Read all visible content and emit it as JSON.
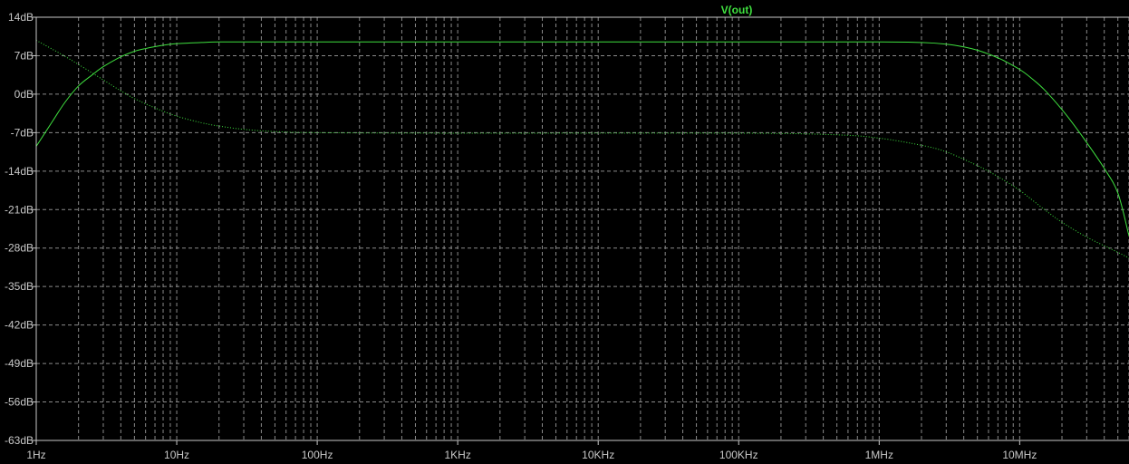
{
  "chart_data": {
    "type": "line",
    "title": "",
    "xlabel": "",
    "ylabel": "",
    "x_scale": "log",
    "xlim_hz": [
      1,
      60000000
    ],
    "ylim_db": [
      -63,
      14
    ],
    "grid": true,
    "legend_position": "top-center",
    "legend_label": "V(out)",
    "colors": {
      "background": "#000000",
      "trace": "#3fe03f",
      "grid": "#8a8a8a",
      "axis": "#c8c8c8"
    },
    "x_ticks": [
      {
        "value": 1,
        "label": "1Hz"
      },
      {
        "value": 10,
        "label": "10Hz"
      },
      {
        "value": 100,
        "label": "100Hz"
      },
      {
        "value": 1000,
        "label": "1KHz"
      },
      {
        "value": 10000,
        "label": "10KHz"
      },
      {
        "value": 100000,
        "label": "100KHz"
      },
      {
        "value": 1000000,
        "label": "1MHz"
      },
      {
        "value": 10000000,
        "label": "10MHz"
      }
    ],
    "y_ticks": [
      {
        "value": 14,
        "label": "14dB"
      },
      {
        "value": 7,
        "label": "7dB"
      },
      {
        "value": 0,
        "label": "0dB"
      },
      {
        "value": -7,
        "label": "-7dB"
      },
      {
        "value": -14,
        "label": "-14dB"
      },
      {
        "value": -21,
        "label": "-21dB"
      },
      {
        "value": -28,
        "label": "-28dB"
      },
      {
        "value": -35,
        "label": "-35dB"
      },
      {
        "value": -42,
        "label": "-42dB"
      },
      {
        "value": -49,
        "label": "-49dB"
      },
      {
        "value": -56,
        "label": "-56dB"
      },
      {
        "value": -63,
        "label": "-63dB"
      }
    ],
    "series": [
      {
        "style": "solid",
        "x": [
          1,
          1.3,
          1.6,
          2,
          2.5,
          3,
          4,
          5,
          6,
          8,
          10,
          15,
          20,
          30,
          50,
          100,
          1000,
          100000,
          1000000,
          2000000,
          3000000,
          4000000,
          5000000,
          6000000,
          7000000,
          8000000,
          10000000,
          12000000,
          15000000,
          20000000,
          25000000,
          30000000,
          40000000,
          50000000,
          60000000
        ],
        "y": [
          -9.5,
          -5.0,
          -1.5,
          1.5,
          3.5,
          5.0,
          6.8,
          7.8,
          8.3,
          8.9,
          9.2,
          9.4,
          9.5,
          9.5,
          9.5,
          9.5,
          9.5,
          9.5,
          9.5,
          9.4,
          9.1,
          8.6,
          8.0,
          7.3,
          6.6,
          5.9,
          4.5,
          3.0,
          0.8,
          -2.8,
          -6.0,
          -8.8,
          -13.5,
          -18.0,
          -25.8
        ]
      },
      {
        "style": "dotted",
        "x": [
          1,
          1.5,
          2,
          3,
          4,
          5,
          7,
          10,
          15,
          20,
          30,
          50,
          100,
          1000,
          100000,
          500000,
          1000000,
          2000000,
          3000000,
          5000000,
          7000000,
          10000000,
          15000000,
          20000000,
          30000000,
          45000000,
          60000000
        ],
        "y": [
          9.8,
          7.3,
          5.4,
          2.6,
          0.6,
          -0.8,
          -2.5,
          -4.0,
          -5.2,
          -5.8,
          -6.4,
          -6.8,
          -7.0,
          -7.1,
          -7.1,
          -7.4,
          -8.0,
          -9.3,
          -10.5,
          -13.0,
          -15.0,
          -17.5,
          -21.0,
          -23.3,
          -26.0,
          -28.2,
          -29.8
        ]
      }
    ]
  }
}
